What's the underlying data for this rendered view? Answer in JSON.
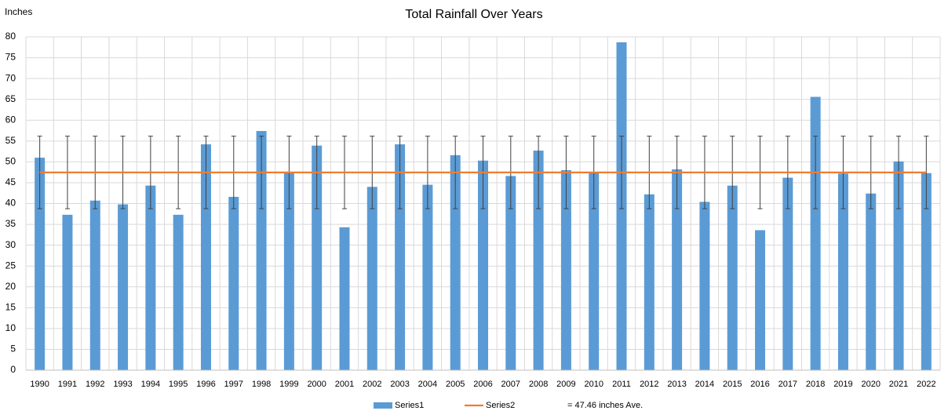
{
  "chart_data": {
    "type": "bar",
    "title": "Total Rainfall Over Years",
    "y_label": "Inches",
    "categories": [
      "1990",
      "1991",
      "1992",
      "1993",
      "1994",
      "1995",
      "1996",
      "1997",
      "1998",
      "1999",
      "2000",
      "2001",
      "2002",
      "2003",
      "2004",
      "2005",
      "2006",
      "2007",
      "2008",
      "2009",
      "2010",
      "2011",
      "2012",
      "2013",
      "2014",
      "2015",
      "2016",
      "2017",
      "2018",
      "2019",
      "2020",
      "2021",
      "2022"
    ],
    "series": [
      {
        "name": "Series1",
        "type": "bar",
        "color": "#5b9bd5",
        "values": [
          51,
          37.3,
          40.7,
          39.8,
          44.3,
          37.3,
          54.2,
          41.6,
          57.4,
          47.4,
          53.9,
          34.3,
          44,
          54.2,
          44.5,
          51.6,
          50.3,
          46.6,
          52.7,
          48,
          47.5,
          78.7,
          42.2,
          48.2,
          40.4,
          44.3,
          33.6,
          46.2,
          65.6,
          47.2,
          42.4,
          50.1,
          47.3
        ]
      },
      {
        "name": "Series2",
        "type": "line",
        "color": "#ed7d31",
        "error": 8.7,
        "values": [
          47.46,
          47.46,
          47.46,
          47.46,
          47.46,
          47.46,
          47.46,
          47.46,
          47.46,
          47.46,
          47.46,
          47.46,
          47.46,
          47.46,
          47.46,
          47.46,
          47.46,
          47.46,
          47.46,
          47.46,
          47.46,
          47.46,
          47.46,
          47.46,
          47.46,
          47.46,
          47.46,
          47.46,
          47.46,
          47.46,
          47.46,
          47.46,
          47.46
        ]
      }
    ],
    "legend_note": "= 47.46 inches Ave.",
    "ylim": [
      0,
      80
    ],
    "yticks": [
      0,
      5,
      10,
      15,
      20,
      25,
      30,
      35,
      40,
      45,
      50,
      55,
      60,
      65,
      70,
      75,
      80
    ],
    "grid": true
  }
}
